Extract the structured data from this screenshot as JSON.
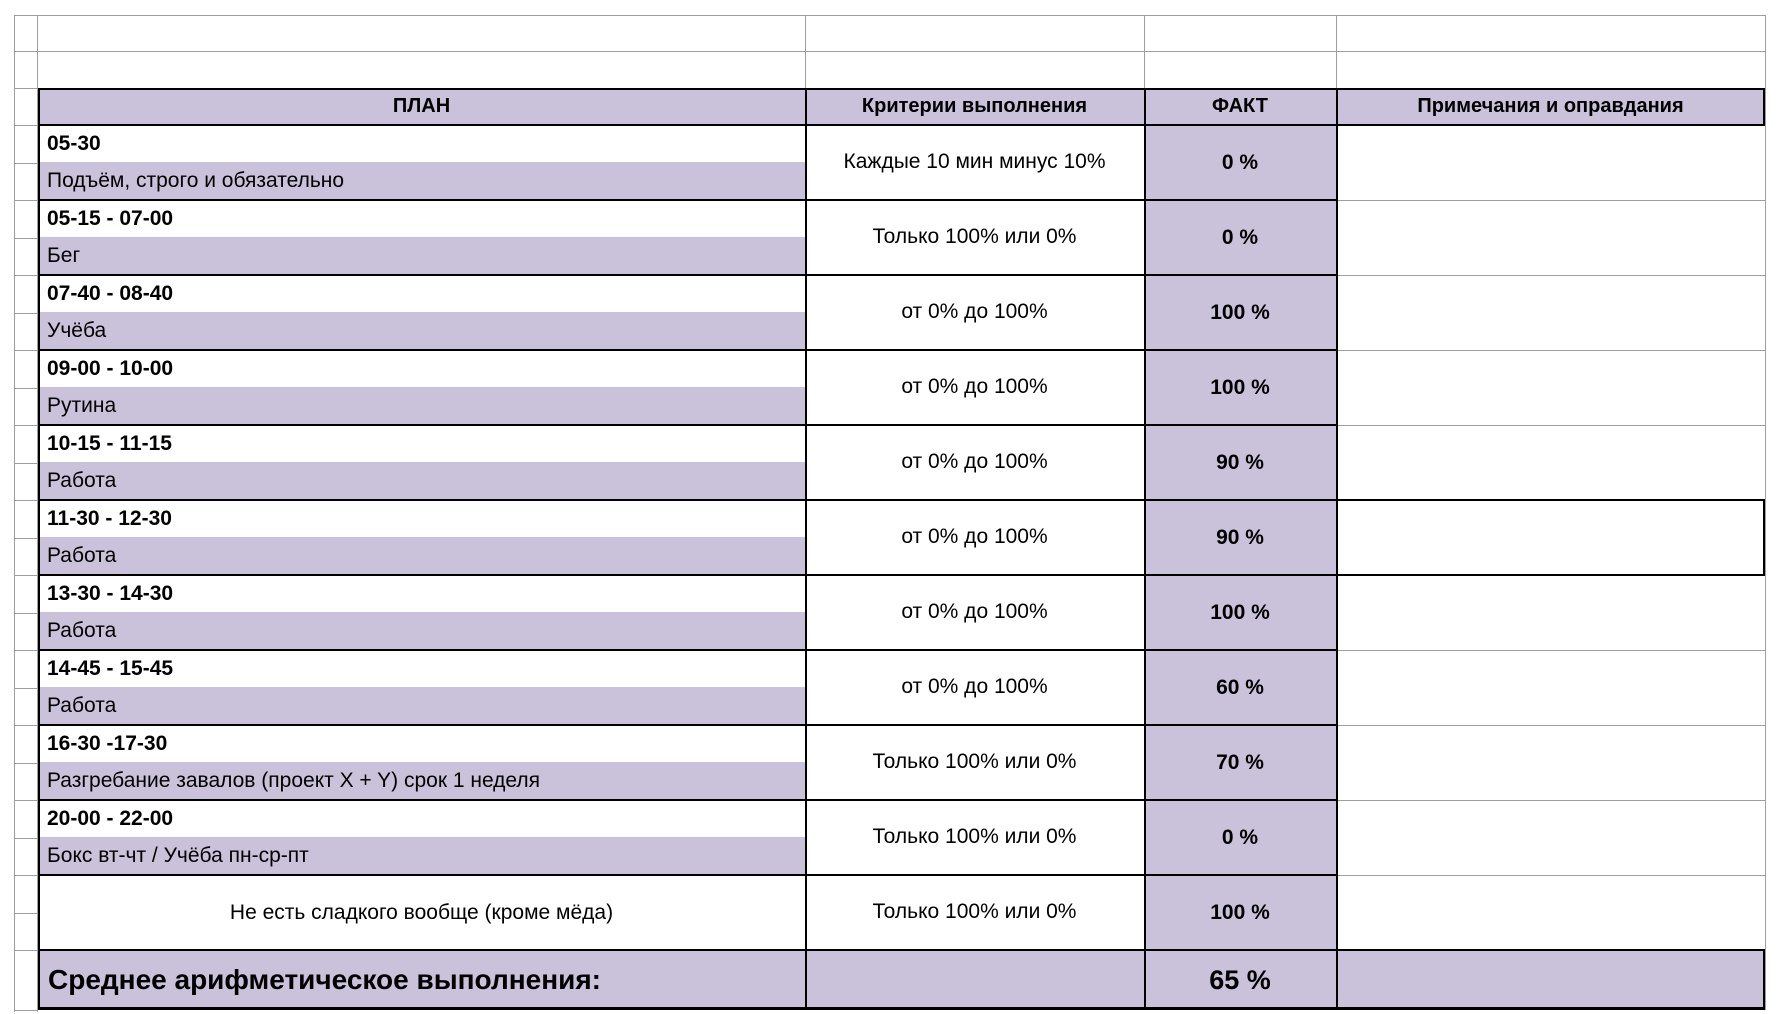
{
  "table": {
    "headers": {
      "plan": "ПЛАН",
      "criteria": "Критерии выполнения",
      "fact": "ФАКТ",
      "notes": "Примечания и оправдания"
    },
    "rows": [
      {
        "time": "05-30",
        "activity": "Подъём, строго и обязательно",
        "criteria": "Каждые 10 мин минус 10%",
        "fact": "0 %",
        "note": ""
      },
      {
        "time": "05-15 - 07-00",
        "activity": "Бег",
        "criteria": "Только 100% или 0%",
        "fact": "0 %",
        "note": ""
      },
      {
        "time": "07-40 - 08-40",
        "activity": "Учёба",
        "criteria": "от 0% до 100%",
        "fact": "100 %",
        "note": ""
      },
      {
        "time": "09-00 - 10-00",
        "activity": "Рутина",
        "criteria": "от 0% до 100%",
        "fact": "100 %",
        "note": ""
      },
      {
        "time": "10-15 - 11-15",
        "activity": "Работа",
        "criteria": "от 0% до 100%",
        "fact": "90 %",
        "note": ""
      },
      {
        "time": "11-30 - 12-30",
        "activity": "Работа",
        "criteria": "от 0% до 100%",
        "fact": "90 %",
        "note": "",
        "boxed_note": true
      },
      {
        "time": "13-30 - 14-30",
        "activity": "Работа",
        "criteria": "от 0% до 100%",
        "fact": "100 %",
        "note": ""
      },
      {
        "time": "14-45 - 15-45",
        "activity": "Работа",
        "criteria": "от 0% до 100%",
        "fact": "60 %",
        "note": ""
      },
      {
        "time": "16-30 -17-30",
        "activity": "Разгребание завалов (проект X + Y) срок 1 неделя",
        "criteria": "Только 100% или 0%",
        "fact": "70 %",
        "note": ""
      },
      {
        "time": "20-00 - 22-00",
        "activity": "Бокс вт-чт / Учёба пн-ср-пт",
        "criteria": "Только 100% или 0%",
        "fact": "0 %",
        "note": ""
      },
      {
        "time": "",
        "activity": "Не есть сладкого вообще (кроме мёда)",
        "criteria": "Только 100% или 0%",
        "fact": "100 %",
        "note": "",
        "merged": true
      }
    ],
    "summary": {
      "label": "Среднее арифметическое выполнения:",
      "fact": "65 %",
      "note": ""
    }
  },
  "colors": {
    "accent": "#cac2da",
    "grid": "#9e9e9e",
    "border": "#000000",
    "background": "#ffffff"
  }
}
